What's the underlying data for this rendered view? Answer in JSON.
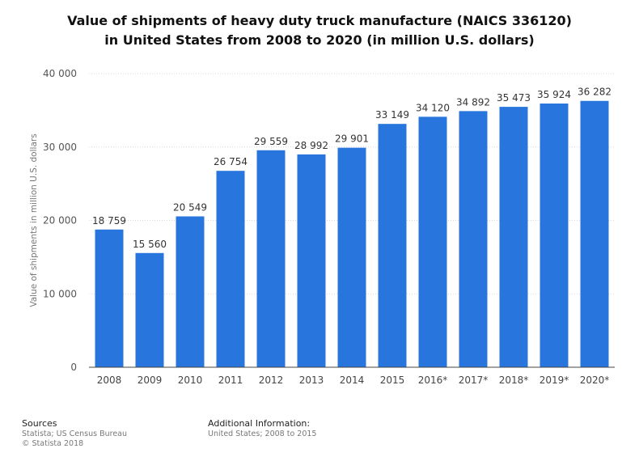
{
  "chart_data": {
    "type": "bar",
    "title_lines": [
      "Value of shipments of heavy duty truck manufacture (NAICS 336120)",
      "in United States from 2008 to 2020 (in million U.S. dollars)"
    ],
    "ylabel": "Value of shipments in million U.S. dollars",
    "xlabel": "",
    "ylim": [
      0,
      40000
    ],
    "yticks": [
      0,
      10000,
      20000,
      30000,
      40000
    ],
    "ytick_labels": [
      "0",
      "10 000",
      "20 000",
      "30 000",
      "40 000"
    ],
    "grid": true,
    "bar_color": "#2876DD",
    "categories": [
      "2008",
      "2009",
      "2010",
      "2011",
      "2012",
      "2013",
      "2014",
      "2015",
      "2016*",
      "2017*",
      "2018*",
      "2019*",
      "2020*"
    ],
    "values": [
      18759,
      15560,
      20549,
      26754,
      29559,
      28992,
      29901,
      33149,
      34120,
      34892,
      35473,
      35924,
      36282
    ],
    "value_labels": [
      "18 759",
      "15 560",
      "20 549",
      "26 754",
      "29 559",
      "28 992",
      "29 901",
      "33 149",
      "34 120",
      "34 892",
      "35 473",
      "35 924",
      "36 282"
    ]
  },
  "footer": {
    "sources_heading": "Sources",
    "sources_lines": [
      "Statista; US Census Bureau",
      "© Statista 2018"
    ],
    "info_heading": "Additional Information:",
    "info_lines": [
      "United States; 2008 to 2015"
    ]
  }
}
